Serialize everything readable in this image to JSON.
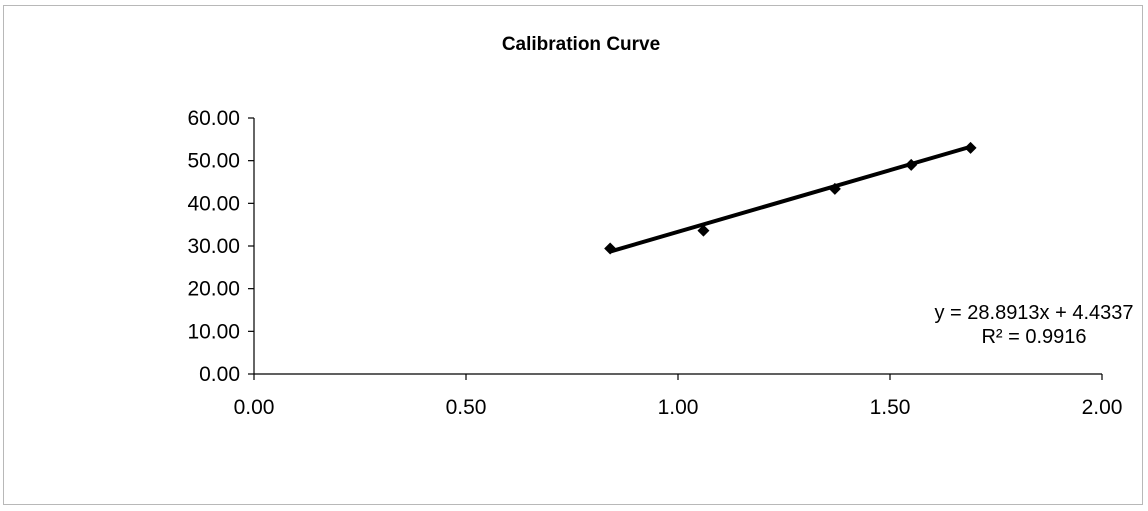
{
  "chart_data": {
    "type": "scatter",
    "title": "Calibration Curve",
    "xlabel": "",
    "ylabel": "",
    "xlim": [
      0,
      2
    ],
    "ylim": [
      0,
      60
    ],
    "x_ticks": [
      "0.00",
      "0.50",
      "1.00",
      "1.50",
      "2.00"
    ],
    "x_tick_values": [
      0,
      0.5,
      1.0,
      1.5,
      2.0
    ],
    "y_ticks": [
      "0.00",
      "10.00",
      "20.00",
      "30.00",
      "40.00",
      "50.00",
      "60.00"
    ],
    "y_tick_values": [
      0,
      10,
      20,
      30,
      40,
      50,
      60
    ],
    "grid": false,
    "legend": "none",
    "series": [
      {
        "marker": "diamond",
        "color": "#000000",
        "points": [
          {
            "x": 0.84,
            "y": 29.4
          },
          {
            "x": 1.06,
            "y": 33.6
          },
          {
            "x": 1.37,
            "y": 43.4
          },
          {
            "x": 1.55,
            "y": 49.0
          },
          {
            "x": 1.69,
            "y": 53.0
          }
        ]
      }
    ],
    "trendline": {
      "type": "linear",
      "slope": 28.8913,
      "intercept": 4.4337,
      "x_range": [
        0.84,
        1.69
      ],
      "color": "#000000"
    },
    "annotations": {
      "equation": "y = 28.8913x + 4.4337",
      "r_squared": "R² = 0.9916"
    }
  }
}
